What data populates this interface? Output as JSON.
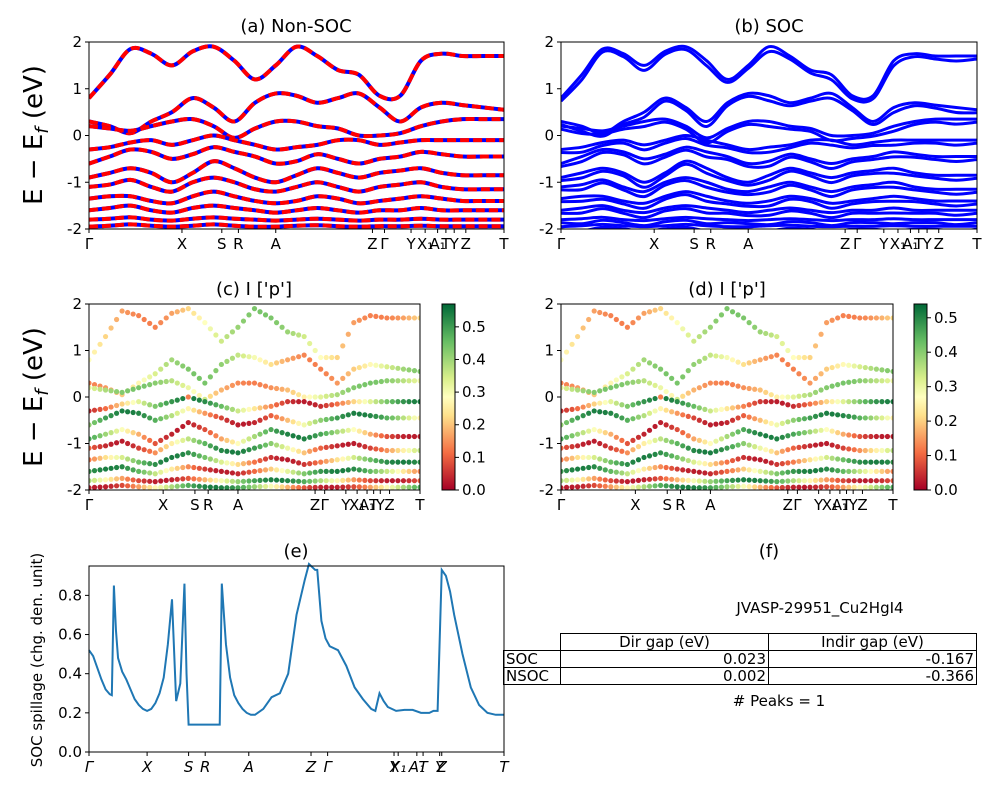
{
  "figure": {
    "panel_a_title": "(a) Non-SOC",
    "panel_b_title": "(b) SOC",
    "panel_c_title": "(c)  I ['p']",
    "panel_d_title": "(d) I ['p']",
    "panel_e_title": "(e)",
    "panel_f_title": "(f)",
    "band_ylabel": "E − E_f (eV)",
    "spillage_ylabel": "SOC spillage (chg. den. unit)",
    "colors": {
      "nonsoc_up": "#ff0000",
      "nonsoc_dn": "#0000ff",
      "soc": "#0000ff",
      "spillage": "#1f77b4"
    }
  },
  "info": {
    "material_id": "JVASP-29951_Cu2HgI4",
    "table_header_dir": "Dir gap (eV)",
    "table_header_indir": "Indir gap (eV)",
    "rows": [
      {
        "label": "SOC",
        "dir": "0.023",
        "indir": "-0.167"
      },
      {
        "label": "NSOC",
        "dir": "0.002",
        "indir": "-0.366"
      }
    ],
    "peaks": "# Peaks = 1"
  },
  "chart_data": [
    {
      "type": "line",
      "title": "(a) Non-SOC",
      "ylabel": "E − E_f (eV)",
      "ylim": [
        -2,
        2
      ],
      "yticks": [
        -2,
        -1,
        0,
        1,
        2
      ],
      "xticks": [
        {
          "label": "Γ",
          "k": 0
        },
        {
          "label": "X",
          "k": 0.224
        },
        {
          "label": "S",
          "k": 0.32
        },
        {
          "label": "R",
          "k": 0.36
        },
        {
          "label": "A",
          "k": 0.45
        },
        {
          "label": "Z",
          "k": 0.683
        },
        {
          "label": "Γ",
          "k": 0.712
        },
        {
          "label": "Y",
          "k": 0.776
        },
        {
          "label": "X₁",
          "k": 0.81
        },
        {
          "label": "A₁",
          "k": 0.84
        },
        {
          "label": "T",
          "k": 0.86
        },
        {
          "label": "Y",
          "k": 0.88
        },
        {
          "label": "Z",
          "k": 0.908
        },
        {
          "label": "T",
          "k": 1.0
        }
      ],
      "series_note": "spin-up red dashed over spin-down blue",
      "bands": [
        {
          "k": [
            0,
            0.05,
            0.1,
            0.15,
            0.2,
            0.25,
            0.3,
            0.35,
            0.4,
            0.45,
            0.5,
            0.55,
            0.6,
            0.65,
            0.7,
            0.75,
            0.8,
            0.85,
            0.9,
            0.95,
            1.0
          ],
          "e": [
            0.8,
            1.3,
            1.85,
            1.75,
            1.5,
            1.8,
            1.9,
            1.6,
            1.2,
            1.5,
            1.9,
            1.7,
            1.4,
            1.3,
            0.85,
            0.85,
            1.6,
            1.75,
            1.7,
            1.7,
            1.7
          ]
        },
        {
          "k": [
            0,
            0.05,
            0.1,
            0.15,
            0.2,
            0.25,
            0.3,
            0.35,
            0.4,
            0.45,
            0.5,
            0.55,
            0.6,
            0.65,
            0.7,
            0.75,
            0.8,
            0.85,
            0.9,
            0.95,
            1.0
          ],
          "e": [
            0.3,
            0.2,
            0.05,
            0.3,
            0.5,
            0.8,
            0.6,
            0.3,
            0.7,
            0.9,
            0.85,
            0.7,
            0.8,
            0.9,
            0.6,
            0.3,
            0.6,
            0.7,
            0.65,
            0.6,
            0.55
          ]
        },
        {
          "k": [
            0,
            0.05,
            0.1,
            0.15,
            0.2,
            0.25,
            0.3,
            0.35,
            0.4,
            0.45,
            0.5,
            0.55,
            0.6,
            0.65,
            0.7,
            0.75,
            0.8,
            0.85,
            0.9,
            0.95,
            1.0
          ],
          "e": [
            0.2,
            0.15,
            0.1,
            0.2,
            0.3,
            0.35,
            0.2,
            -0.05,
            0.15,
            0.3,
            0.3,
            0.2,
            0.15,
            0.0,
            0.0,
            0.05,
            0.2,
            0.3,
            0.35,
            0.35,
            0.35
          ]
        },
        {
          "k": [
            0,
            0.05,
            0.1,
            0.15,
            0.2,
            0.25,
            0.3,
            0.35,
            0.4,
            0.45,
            0.5,
            0.55,
            0.6,
            0.65,
            0.7,
            0.75,
            0.8,
            0.85,
            0.9,
            0.95,
            1.0
          ],
          "e": [
            -0.3,
            -0.25,
            -0.15,
            -0.1,
            -0.2,
            -0.1,
            0.0,
            -0.1,
            -0.2,
            -0.3,
            -0.25,
            -0.2,
            -0.1,
            -0.1,
            -0.2,
            -0.15,
            -0.1,
            -0.1,
            -0.1,
            -0.1,
            -0.1
          ]
        },
        {
          "k": [
            0,
            0.05,
            0.1,
            0.15,
            0.2,
            0.25,
            0.3,
            0.35,
            0.4,
            0.45,
            0.5,
            0.55,
            0.6,
            0.65,
            0.7,
            0.75,
            0.8,
            0.85,
            0.9,
            0.95,
            1.0
          ],
          "e": [
            -0.6,
            -0.45,
            -0.3,
            -0.35,
            -0.5,
            -0.4,
            -0.25,
            -0.35,
            -0.45,
            -0.6,
            -0.55,
            -0.4,
            -0.5,
            -0.6,
            -0.5,
            -0.45,
            -0.35,
            -0.4,
            -0.45,
            -0.45,
            -0.45
          ]
        },
        {
          "k": [
            0,
            0.05,
            0.1,
            0.15,
            0.2,
            0.25,
            0.3,
            0.35,
            0.4,
            0.45,
            0.5,
            0.55,
            0.6,
            0.65,
            0.7,
            0.75,
            0.8,
            0.85,
            0.9,
            0.95,
            1.0
          ],
          "e": [
            -0.9,
            -0.8,
            -0.7,
            -0.8,
            -1.0,
            -0.8,
            -0.55,
            -0.7,
            -0.9,
            -1.0,
            -0.85,
            -0.7,
            -0.8,
            -0.9,
            -0.8,
            -0.75,
            -0.7,
            -0.8,
            -0.85,
            -0.85,
            -0.85
          ]
        },
        {
          "k": [
            0,
            0.05,
            0.1,
            0.15,
            0.2,
            0.25,
            0.3,
            0.35,
            0.4,
            0.45,
            0.5,
            0.55,
            0.6,
            0.65,
            0.7,
            0.75,
            0.8,
            0.85,
            0.9,
            0.95,
            1.0
          ],
          "e": [
            -1.1,
            -1.05,
            -0.95,
            -1.1,
            -1.2,
            -1.0,
            -0.9,
            -1.0,
            -1.15,
            -1.2,
            -1.1,
            -1.0,
            -1.1,
            -1.2,
            -1.1,
            -1.05,
            -1.0,
            -1.1,
            -1.15,
            -1.15,
            -1.15
          ]
        },
        {
          "k": [
            0,
            0.05,
            0.1,
            0.15,
            0.2,
            0.25,
            0.3,
            0.35,
            0.4,
            0.45,
            0.5,
            0.55,
            0.6,
            0.65,
            0.7,
            0.75,
            0.8,
            0.85,
            0.9,
            0.95,
            1.0
          ],
          "e": [
            -1.35,
            -1.3,
            -1.3,
            -1.4,
            -1.45,
            -1.3,
            -1.2,
            -1.3,
            -1.4,
            -1.45,
            -1.4,
            -1.3,
            -1.35,
            -1.45,
            -1.4,
            -1.35,
            -1.3,
            -1.35,
            -1.4,
            -1.4,
            -1.4
          ]
        },
        {
          "k": [
            0,
            0.05,
            0.1,
            0.15,
            0.2,
            0.25,
            0.3,
            0.35,
            0.4,
            0.45,
            0.5,
            0.55,
            0.6,
            0.65,
            0.7,
            0.75,
            0.8,
            0.85,
            0.9,
            0.95,
            1.0
          ],
          "e": [
            -1.6,
            -1.55,
            -1.5,
            -1.6,
            -1.65,
            -1.55,
            -1.5,
            -1.55,
            -1.6,
            -1.65,
            -1.6,
            -1.55,
            -1.6,
            -1.65,
            -1.6,
            -1.6,
            -1.55,
            -1.6,
            -1.6,
            -1.6,
            -1.6
          ]
        },
        {
          "k": [
            0,
            0.05,
            0.1,
            0.15,
            0.2,
            0.25,
            0.3,
            0.35,
            0.4,
            0.45,
            0.5,
            0.55,
            0.6,
            0.65,
            0.7,
            0.75,
            0.8,
            0.85,
            0.9,
            0.95,
            1.0
          ],
          "e": [
            -1.8,
            -1.78,
            -1.75,
            -1.8,
            -1.82,
            -1.78,
            -1.75,
            -1.78,
            -1.8,
            -1.82,
            -1.8,
            -1.78,
            -1.8,
            -1.82,
            -1.8,
            -1.8,
            -1.78,
            -1.8,
            -1.8,
            -1.8,
            -1.8
          ]
        },
        {
          "k": [
            0,
            0.05,
            0.1,
            0.15,
            0.2,
            0.25,
            0.3,
            0.35,
            0.4,
            0.45,
            0.5,
            0.55,
            0.6,
            0.65,
            0.7,
            0.75,
            0.8,
            0.85,
            0.9,
            0.95,
            1.0
          ],
          "e": [
            -1.95,
            -1.93,
            -1.9,
            -1.93,
            -1.95,
            -1.93,
            -1.9,
            -1.93,
            -1.95,
            -1.95,
            -1.93,
            -1.92,
            -1.94,
            -1.95,
            -1.94,
            -1.94,
            -1.93,
            -1.94,
            -1.94,
            -1.94,
            -1.94
          ]
        }
      ]
    },
    {
      "type": "line",
      "title": "(b) SOC",
      "ylim": [
        -2,
        2
      ],
      "yticks": [
        -2,
        -1,
        0,
        1,
        2
      ],
      "note": "same k-path and band structure, SOC-split bands shown in blue"
    },
    {
      "type": "scatter",
      "title": "(c)  I ['p']",
      "ylabel": "E − E_f (eV)",
      "ylim": [
        -2,
        2
      ],
      "yticks": [
        -2,
        -1,
        0,
        1,
        2
      ],
      "colorbar": {
        "ticks": [
          0.0,
          0.1,
          0.2,
          0.3,
          0.4,
          0.5
        ],
        "max": 0.57,
        "colormap": "RdYlGn"
      },
      "xticks": [
        {
          "label": "Γ",
          "k": 0
        },
        {
          "label": "X",
          "k": 0.224
        },
        {
          "label": "S",
          "k": 0.32
        },
        {
          "label": "R",
          "k": 0.36
        },
        {
          "label": "A",
          "k": 0.45
        },
        {
          "label": "Z",
          "k": 0.683
        },
        {
          "label": "Γ",
          "k": 0.712
        },
        {
          "label": "Y",
          "k": 0.776
        },
        {
          "label": "X₁",
          "k": 0.81
        },
        {
          "label": "A₁",
          "k": 0.84
        },
        {
          "label": "T",
          "k": 0.86
        },
        {
          "label": "Y",
          "k": 0.88
        },
        {
          "label": "Z",
          "k": 0.908
        },
        {
          "label": "T",
          "k": 1.0
        }
      ]
    },
    {
      "type": "scatter",
      "title": "(d) I ['p']",
      "ylim": [
        -2,
        2
      ],
      "yticks": [
        -2,
        -1,
        0,
        1,
        2
      ],
      "colorbar": {
        "ticks": [
          0.0,
          0.1,
          0.2,
          0.3,
          0.4,
          0.5
        ],
        "max": 0.54,
        "colormap": "RdYlGn"
      }
    },
    {
      "type": "line",
      "title": "(e)",
      "ylabel": "SOC spillage (chg. den. unit)",
      "ylim": [
        0.0,
        0.95
      ],
      "yticks": [
        0.0,
        0.2,
        0.4,
        0.6,
        0.8
      ],
      "xticks": [
        {
          "label": "Γ",
          "k": 0
        },
        {
          "label": "X",
          "k": 0.14
        },
        {
          "label": "S",
          "k": 0.24
        },
        {
          "label": "R",
          "k": 0.28
        },
        {
          "label": "A",
          "k": 0.385
        },
        {
          "label": "Z",
          "k": 0.535
        },
        {
          "label": "Γ",
          "k": 0.575
        },
        {
          "label": "Y",
          "k": 0.735
        },
        {
          "label": "X₁",
          "k": 0.745
        },
        {
          "label": "A₁",
          "k": 0.79
        },
        {
          "label": "T",
          "k": 0.805
        },
        {
          "label": "Y",
          "k": 0.845
        },
        {
          "label": "Z",
          "k": 0.85
        },
        {
          "label": "T",
          "k": 1.0
        }
      ],
      "x": [
        0,
        0.01,
        0.02,
        0.03,
        0.04,
        0.05,
        0.055,
        0.06,
        0.065,
        0.07,
        0.08,
        0.09,
        0.1,
        0.11,
        0.12,
        0.13,
        0.14,
        0.15,
        0.16,
        0.17,
        0.18,
        0.19,
        0.2,
        0.21,
        0.22,
        0.23,
        0.235,
        0.24,
        0.245,
        0.25,
        0.3,
        0.31,
        0.315,
        0.32,
        0.33,
        0.34,
        0.35,
        0.36,
        0.37,
        0.38,
        0.39,
        0.4,
        0.42,
        0.44,
        0.46,
        0.48,
        0.5,
        0.52,
        0.53,
        0.54,
        0.545,
        0.55,
        0.56,
        0.57,
        0.58,
        0.6,
        0.62,
        0.64,
        0.66,
        0.68,
        0.69,
        0.7,
        0.71,
        0.72,
        0.74,
        0.76,
        0.78,
        0.8,
        0.82,
        0.83,
        0.84,
        0.85,
        0.86,
        0.87,
        0.88,
        0.9,
        0.92,
        0.94,
        0.96,
        0.98,
        1.0
      ],
      "y": [
        0.52,
        0.49,
        0.43,
        0.37,
        0.32,
        0.295,
        0.29,
        0.85,
        0.62,
        0.48,
        0.41,
        0.37,
        0.32,
        0.27,
        0.24,
        0.22,
        0.21,
        0.22,
        0.25,
        0.3,
        0.38,
        0.55,
        0.78,
        0.26,
        0.35,
        0.86,
        0.4,
        0.14,
        0.14,
        0.14,
        0.14,
        0.14,
        0.14,
        0.86,
        0.55,
        0.38,
        0.29,
        0.25,
        0.22,
        0.2,
        0.19,
        0.19,
        0.22,
        0.28,
        0.3,
        0.4,
        0.7,
        0.88,
        0.96,
        0.94,
        0.93,
        0.93,
        0.67,
        0.58,
        0.54,
        0.52,
        0.44,
        0.33,
        0.27,
        0.22,
        0.21,
        0.3,
        0.26,
        0.23,
        0.21,
        0.215,
        0.215,
        0.2,
        0.2,
        0.21,
        0.21,
        0.93,
        0.9,
        0.82,
        0.7,
        0.5,
        0.33,
        0.24,
        0.2,
        0.19,
        0.19
      ]
    },
    {
      "type": "table",
      "title": "(f)",
      "columns": [
        "",
        "Dir gap (eV)",
        "Indir gap (eV)"
      ],
      "rows": [
        [
          "SOC",
          0.023,
          -0.167
        ],
        [
          "NSOC",
          0.002,
          -0.366
        ]
      ]
    }
  ]
}
